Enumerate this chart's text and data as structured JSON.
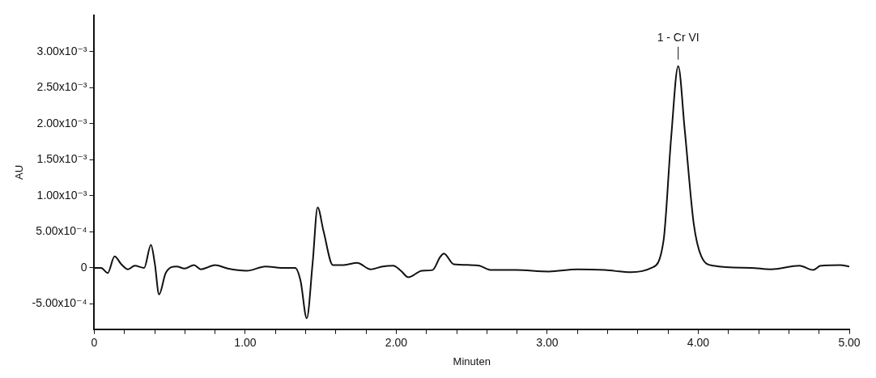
{
  "chart_data": {
    "type": "line",
    "xlabel": "Minuten",
    "ylabel": "AU",
    "xlim": [
      0,
      5
    ],
    "ylim": [
      -0.00085,
      0.0035
    ],
    "xticks": [
      {
        "value": 0,
        "label": "0"
      },
      {
        "value": 0.2,
        "label": null
      },
      {
        "value": 0.4,
        "label": null
      },
      {
        "value": 0.6,
        "label": null
      },
      {
        "value": 0.8,
        "label": null
      },
      {
        "value": 1,
        "label": "1.00"
      },
      {
        "value": 1.2,
        "label": null
      },
      {
        "value": 1.4,
        "label": null
      },
      {
        "value": 1.6,
        "label": null
      },
      {
        "value": 1.8,
        "label": null
      },
      {
        "value": 2,
        "label": "2.00"
      },
      {
        "value": 2.2,
        "label": null
      },
      {
        "value": 2.4,
        "label": null
      },
      {
        "value": 2.6,
        "label": null
      },
      {
        "value": 2.8,
        "label": null
      },
      {
        "value": 3,
        "label": "3.00"
      },
      {
        "value": 3.2,
        "label": null
      },
      {
        "value": 3.4,
        "label": null
      },
      {
        "value": 3.6,
        "label": null
      },
      {
        "value": 3.8,
        "label": null
      },
      {
        "value": 4,
        "label": "4.00"
      },
      {
        "value": 4.2,
        "label": null
      },
      {
        "value": 4.4,
        "label": null
      },
      {
        "value": 4.6,
        "label": null
      },
      {
        "value": 4.8,
        "label": null
      },
      {
        "value": 5,
        "label": "5.00"
      }
    ],
    "yticks": [
      {
        "value": -0.0005,
        "label": "-5.00x10⁻⁴"
      },
      {
        "value": 0,
        "label": "0"
      },
      {
        "value": 0.0005,
        "label": "5.00x10⁻⁴"
      },
      {
        "value": 0.001,
        "label": "1.00x10⁻³"
      },
      {
        "value": 0.0015,
        "label": "1.50x10⁻³"
      },
      {
        "value": 0.002,
        "label": "2.00x10⁻³"
      },
      {
        "value": 0.0025,
        "label": "2.50x10⁻³"
      },
      {
        "value": 0.003,
        "label": "3.00x10⁻³"
      }
    ],
    "annotations": [
      {
        "text": "1 - Cr VI",
        "x": 3.867,
        "y": 0.0028
      }
    ],
    "grid": false,
    "legend": false,
    "marker": "none",
    "line_style": "solid",
    "series": [
      {
        "color": "#111111",
        "x": [
          0,
          0.045,
          0.089,
          0.134,
          0.179,
          0.223,
          0.268,
          0.33,
          0.375,
          0.4,
          0.429,
          0.473,
          0.545,
          0.598,
          0.66,
          0.705,
          0.8,
          0.884,
          1.01,
          1.134,
          1.24,
          1.33,
          1.366,
          1.407,
          1.446,
          1.479,
          1.518,
          1.58,
          1.652,
          1.741,
          1.83,
          1.91,
          1.98,
          2.03,
          2.08,
          2.17,
          2.24,
          2.29,
          2.315,
          2.38,
          2.49,
          2.55,
          2.63,
          2.79,
          3.01,
          3.2,
          3.38,
          3.555,
          3.69,
          3.77,
          3.82,
          3.867,
          3.91,
          3.97,
          4.02,
          4.1,
          4.35,
          4.48,
          4.67,
          4.76,
          4.81,
          4.94,
          5
        ],
        "values": [
          0,
          0,
          -7e-05,
          0.00016,
          5e-05,
          -2e-05,
          3e-05,
          0,
          0.00032,
          7e-05,
          -0.00037,
          -7e-05,
          2e-05,
          -1e-05,
          4e-05,
          -2e-05,
          4e-05,
          -1e-05,
          -4e-05,
          2e-05,
          0,
          0,
          -0.00018,
          -0.0007,
          7e-05,
          0.00084,
          0.00051,
          4e-05,
          4e-05,
          7e-05,
          -2e-05,
          2e-05,
          3e-05,
          -4e-05,
          -0.00013,
          -4e-05,
          -3e-05,
          0.00015,
          0.0002,
          5e-05,
          4e-05,
          3e-05,
          -3e-05,
          -3e-05,
          -5e-05,
          -2e-05,
          -3e-05,
          -6e-05,
          0,
          0.00038,
          0.0018,
          0.0028,
          0.00192,
          0.00061,
          0.00016,
          3e-05,
          0,
          -2e-05,
          3e-05,
          -3e-05,
          3e-05,
          4e-05,
          2e-05
        ]
      }
    ]
  }
}
